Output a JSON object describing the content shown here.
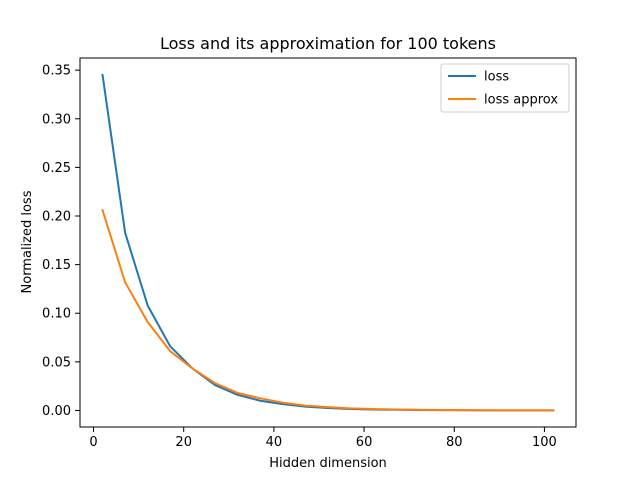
{
  "chart_data": {
    "type": "line",
    "title": "Loss and its approximation for 100 tokens",
    "xlabel": "Hidden dimension",
    "ylabel": "Normalized loss",
    "xlim": [
      -3,
      107
    ],
    "ylim": [
      -0.017,
      0.3625
    ],
    "xticks": [
      0,
      20,
      40,
      60,
      80,
      100
    ],
    "xtick_labels": [
      "0",
      "20",
      "40",
      "60",
      "80",
      "100"
    ],
    "yticks": [
      0.0,
      0.05,
      0.1,
      0.15,
      0.2,
      0.25,
      0.3,
      0.35
    ],
    "ytick_labels": [
      "0.00",
      "0.05",
      "0.10",
      "0.15",
      "0.20",
      "0.25",
      "0.30",
      "0.35"
    ],
    "grid": false,
    "legend_position": "top-right",
    "x": [
      2,
      7,
      12,
      17,
      22,
      27,
      32,
      37,
      42,
      47,
      52,
      57,
      62,
      67,
      72,
      77,
      82,
      87,
      92,
      97,
      102
    ],
    "series": [
      {
        "name": "loss",
        "color": "#1f77b4",
        "values": [
          0.345,
          0.183,
          0.108,
          0.066,
          0.043,
          0.026,
          0.016,
          0.01,
          0.0065,
          0.004,
          0.0025,
          0.0015,
          0.001,
          0.0007,
          0.0005,
          0.0003,
          0.0002,
          0.0001,
          0.0001,
          0.0001,
          0.0001
        ]
      },
      {
        "name": "loss approx",
        "color": "#ff7f0e",
        "values": [
          0.206,
          0.132,
          0.091,
          0.061,
          0.043,
          0.028,
          0.018,
          0.0125,
          0.008,
          0.005,
          0.0035,
          0.0022,
          0.0015,
          0.001,
          0.0007,
          0.0005,
          0.0003,
          0.0002,
          0.0001,
          0.0001,
          0.0001
        ]
      }
    ]
  }
}
